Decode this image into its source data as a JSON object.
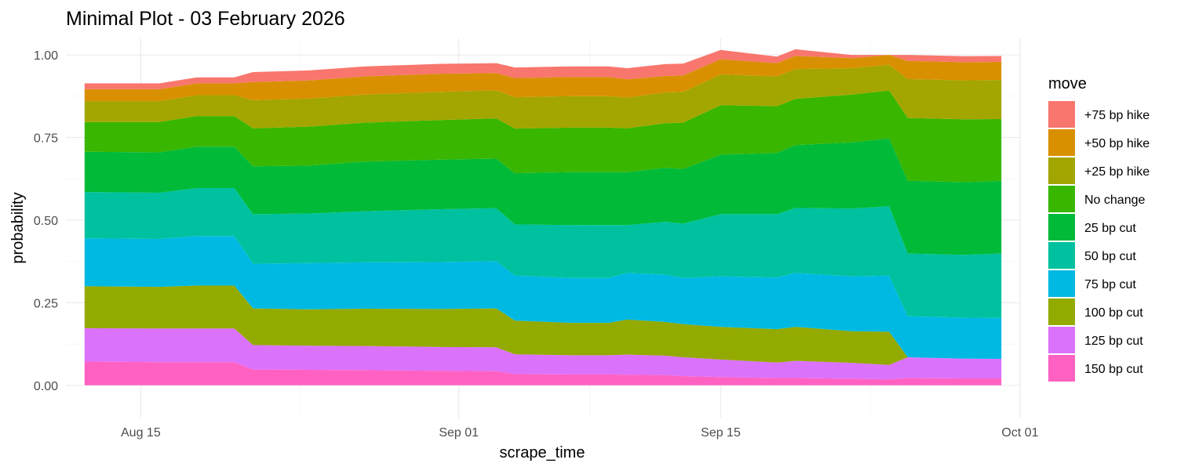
{
  "chart_data": {
    "type": "area",
    "stacked": true,
    "title": "Minimal Plot - 03 February 2026",
    "xlabel": "scrape_time",
    "ylabel": "probability",
    "xlim": [
      "2025-08-11",
      "2025-10-01"
    ],
    "ylim": [
      0,
      1.0
    ],
    "grid": true,
    "legend_title": "move",
    "legend_position": "right",
    "x_ticks": [
      {
        "date": "2025-08-15",
        "label": "Aug 15"
      },
      {
        "date": "2025-09-01",
        "label": "Sep 01"
      },
      {
        "date": "2025-09-15",
        "label": "Sep 15"
      },
      {
        "date": "2025-10-01",
        "label": "Oct 01"
      }
    ],
    "y_ticks": [
      {
        "value": 0,
        "label": "0.00"
      },
      {
        "value": 0.25,
        "label": "0.25"
      },
      {
        "value": 0.5,
        "label": "0.50"
      },
      {
        "value": 0.75,
        "label": "0.75"
      },
      {
        "value": 1.0,
        "label": "1.00"
      }
    ],
    "x": [
      "2025-08-12",
      "2025-08-16",
      "2025-08-18",
      "2025-08-20",
      "2025-08-21",
      "2025-08-24",
      "2025-08-27",
      "2025-08-31",
      "2025-09-03",
      "2025-09-04",
      "2025-09-07",
      "2025-09-09",
      "2025-09-10",
      "2025-09-12",
      "2025-09-13",
      "2025-09-15",
      "2025-09-18",
      "2025-09-19",
      "2025-09-22",
      "2025-09-24",
      "2025-09-25",
      "2025-09-28",
      "2025-09-30"
    ],
    "series": [
      {
        "name": "150 bp cut",
        "color": "#FF61C3",
        "values": [
          0.072,
          0.07,
          0.07,
          0.07,
          0.048,
          0.047,
          0.046,
          0.044,
          0.043,
          0.034,
          0.033,
          0.033,
          0.032,
          0.031,
          0.028,
          0.025,
          0.022,
          0.022,
          0.02,
          0.018,
          0.022,
          0.021,
          0.021
        ]
      },
      {
        "name": "125 bp cut",
        "color": "#DB72FB",
        "values": [
          0.101,
          0.102,
          0.102,
          0.102,
          0.074,
          0.073,
          0.073,
          0.072,
          0.072,
          0.06,
          0.058,
          0.058,
          0.061,
          0.059,
          0.057,
          0.053,
          0.047,
          0.052,
          0.048,
          0.044,
          0.063,
          0.06,
          0.059
        ]
      },
      {
        "name": "100 bp cut",
        "color": "#93AA00",
        "values": [
          0.127,
          0.126,
          0.13,
          0.13,
          0.111,
          0.11,
          0.113,
          0.115,
          0.118,
          0.102,
          0.098,
          0.098,
          0.106,
          0.102,
          0.1,
          0.099,
          0.101,
          0.103,
          0.096,
          0.1,
          0.0,
          0.0,
          0.0
        ]
      },
      {
        "name": "75 bp cut",
        "color": "#00B9E3",
        "values": [
          0.145,
          0.145,
          0.15,
          0.15,
          0.135,
          0.14,
          0.14,
          0.142,
          0.143,
          0.136,
          0.136,
          0.136,
          0.141,
          0.143,
          0.14,
          0.153,
          0.156,
          0.163,
          0.166,
          0.17,
          0.124,
          0.124,
          0.124
        ]
      },
      {
        "name": "50 bp cut",
        "color": "#00C19F",
        "values": [
          0.14,
          0.14,
          0.145,
          0.145,
          0.15,
          0.15,
          0.155,
          0.16,
          0.16,
          0.155,
          0.16,
          0.16,
          0.145,
          0.16,
          0.165,
          0.188,
          0.192,
          0.197,
          0.205,
          0.21,
          0.19,
          0.19,
          0.195
        ]
      },
      {
        "name": "25 bp cut",
        "color": "#00BA38",
        "values": [
          0.122,
          0.122,
          0.125,
          0.125,
          0.145,
          0.145,
          0.15,
          0.15,
          0.15,
          0.155,
          0.16,
          0.16,
          0.16,
          0.163,
          0.165,
          0.18,
          0.185,
          0.19,
          0.2,
          0.205,
          0.22,
          0.22,
          0.22
        ]
      },
      {
        "name": "No change",
        "color": "#39B600",
        "values": [
          0.09,
          0.092,
          0.093,
          0.093,
          0.115,
          0.118,
          0.118,
          0.12,
          0.122,
          0.135,
          0.135,
          0.135,
          0.133,
          0.135,
          0.14,
          0.15,
          0.142,
          0.14,
          0.145,
          0.145,
          0.19,
          0.19,
          0.187
        ]
      },
      {
        "name": "+25 bp hike",
        "color": "#A3A500",
        "values": [
          0.063,
          0.063,
          0.063,
          0.063,
          0.085,
          0.085,
          0.085,
          0.085,
          0.085,
          0.095,
          0.095,
          0.095,
          0.093,
          0.093,
          0.093,
          0.093,
          0.09,
          0.09,
          0.08,
          0.078,
          0.118,
          0.118,
          0.118
        ]
      },
      {
        "name": "+50 bp hike",
        "color": "#D89000",
        "values": [
          0.036,
          0.036,
          0.036,
          0.036,
          0.055,
          0.055,
          0.055,
          0.055,
          0.052,
          0.058,
          0.058,
          0.058,
          0.055,
          0.05,
          0.05,
          0.046,
          0.04,
          0.04,
          0.03,
          0.03,
          0.055,
          0.055,
          0.055
        ]
      },
      {
        "name": "+75 bp hike",
        "color": "#F8766D",
        "values": [
          0.018,
          0.018,
          0.018,
          0.018,
          0.03,
          0.03,
          0.03,
          0.03,
          0.03,
          0.032,
          0.032,
          0.032,
          0.034,
          0.036,
          0.036,
          0.028,
          0.02,
          0.02,
          0.01,
          0.0,
          0.018,
          0.018,
          0.018
        ]
      }
    ]
  }
}
